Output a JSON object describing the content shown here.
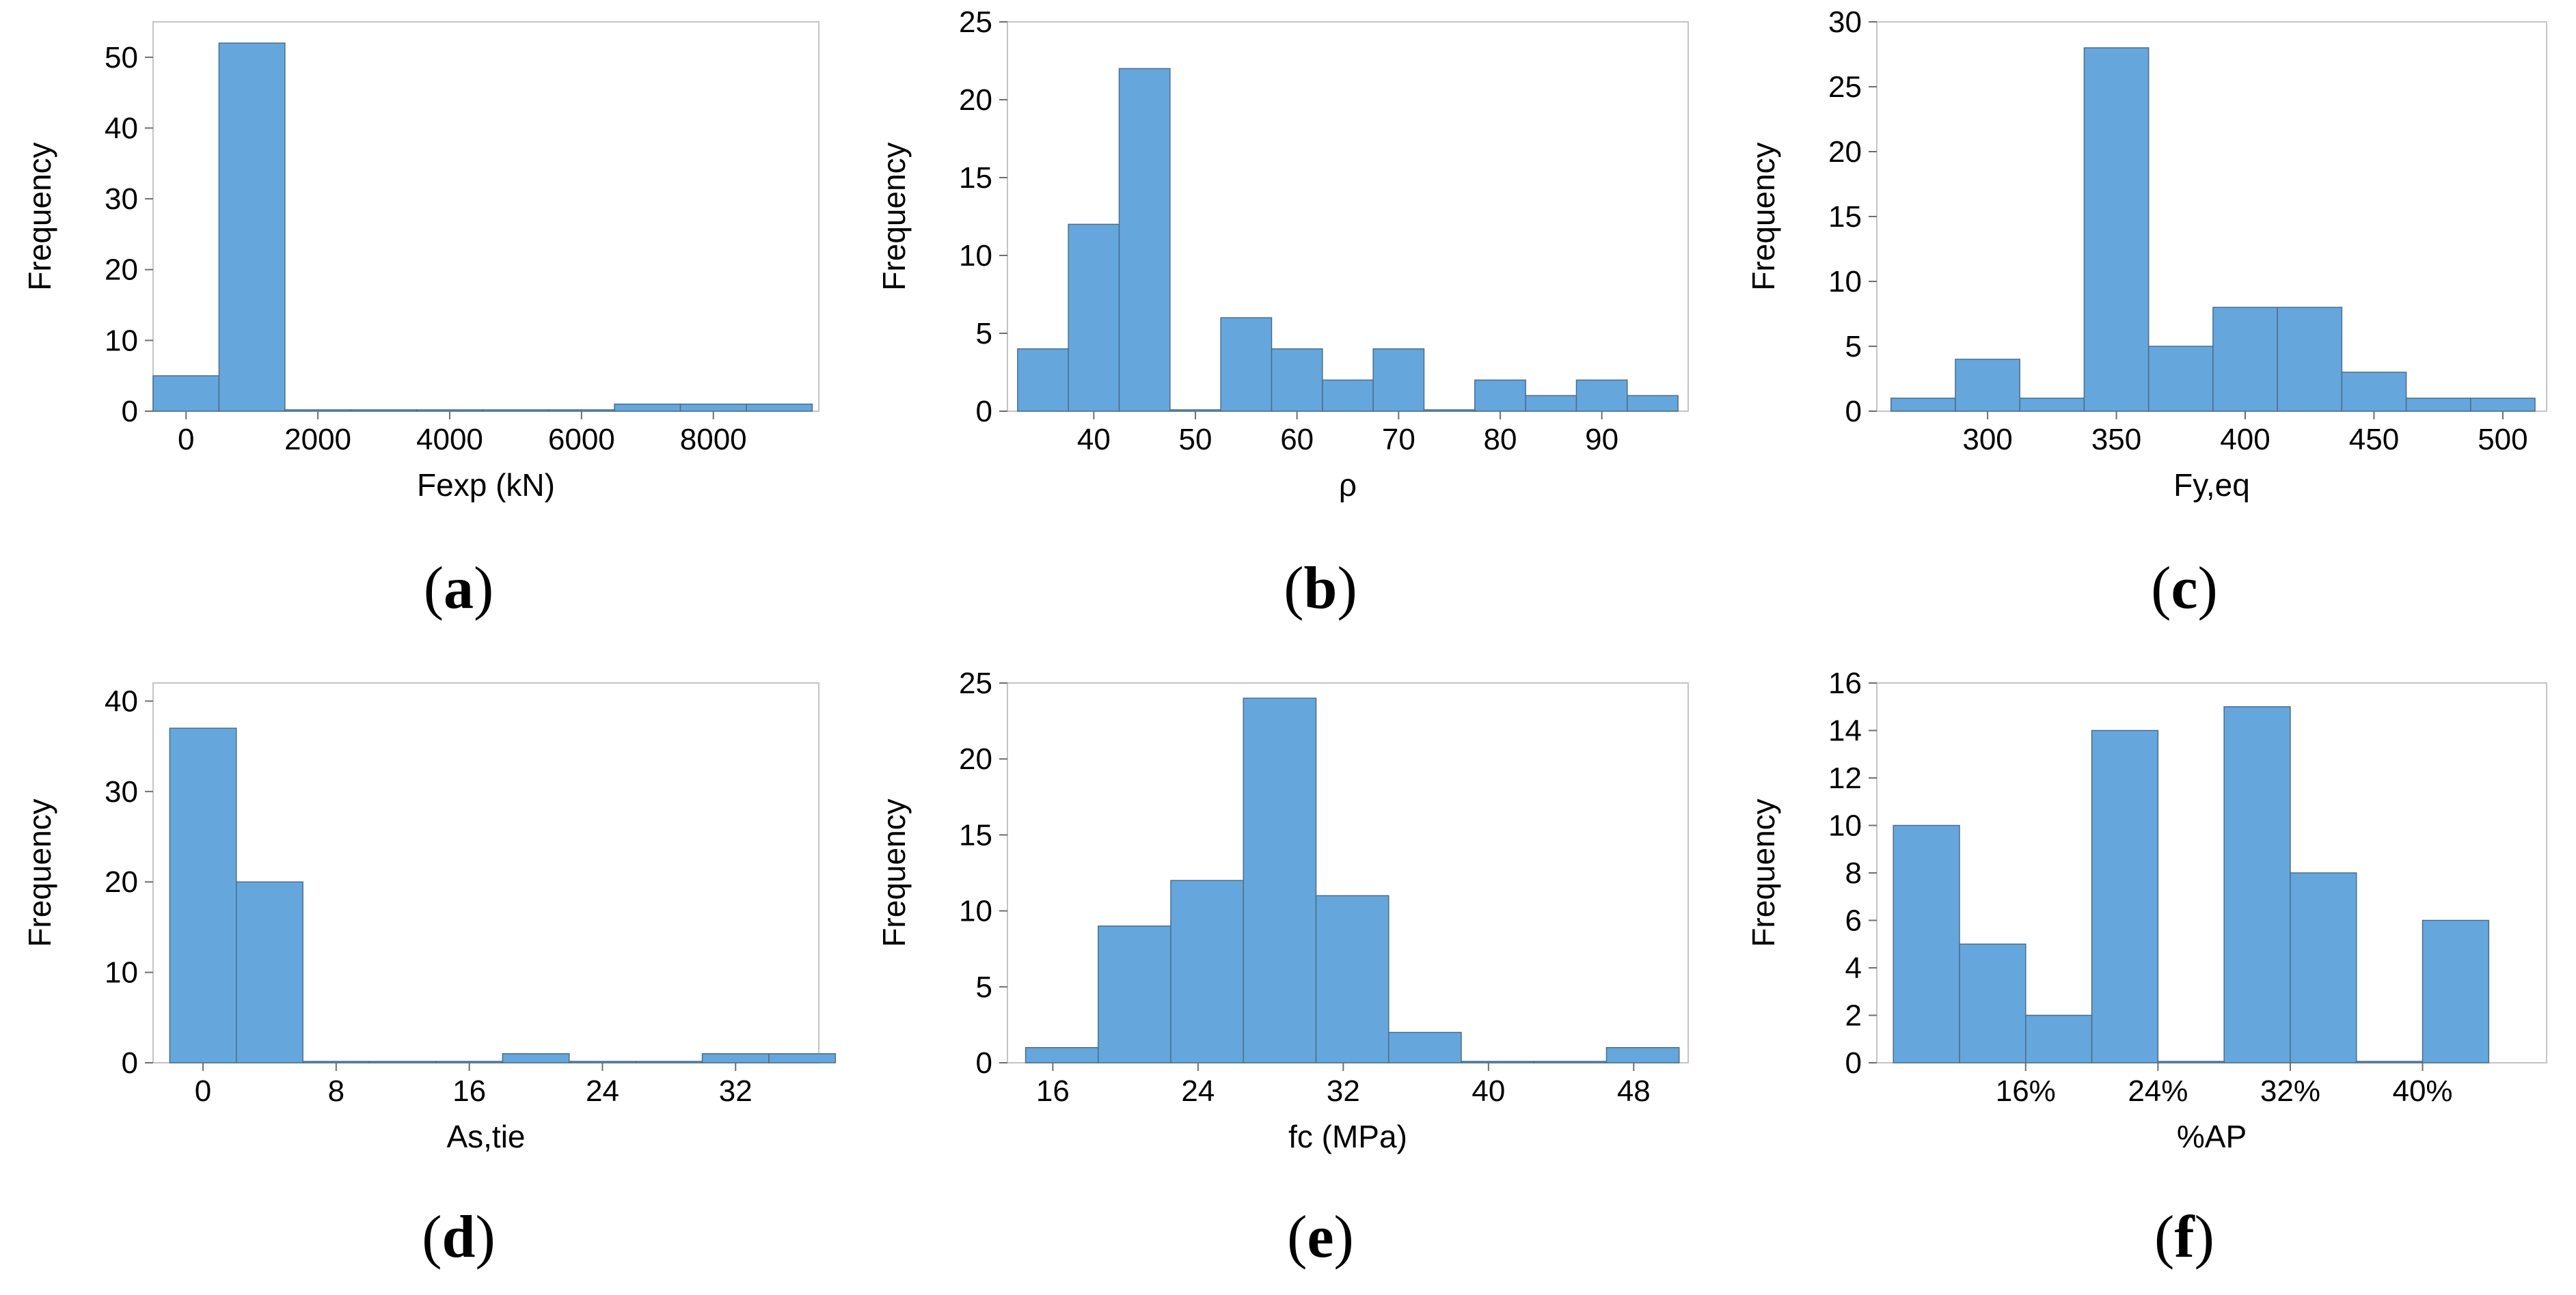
{
  "colors": {
    "bar_fill": "#65a7dc",
    "bar_stroke": "#4a6d8c",
    "frame": "#c4c4c4",
    "axis": "#6e6e6e",
    "text": "#000000",
    "background": "#ffffff"
  },
  "chart_data": [
    {
      "type": "bar",
      "panel": "(a)",
      "title": "",
      "xlabel": "Fexp (kN)",
      "ylabel": "Frequency",
      "xlim": [
        -500,
        9600
      ],
      "ylim": [
        0,
        55
      ],
      "yticks": [
        0,
        10,
        20,
        30,
        40,
        50
      ],
      "xticks": [
        0,
        2000,
        4000,
        6000,
        8000
      ],
      "xtick_labels": [
        "0",
        "2000",
        "4000",
        "6000",
        "8000"
      ],
      "bin_edges": [
        -500,
        500,
        1500,
        2500,
        3500,
        4500,
        5500,
        6500,
        7500,
        8500,
        9500
      ],
      "values": [
        5,
        52,
        0,
        0,
        0,
        0,
        0,
        1,
        1,
        1
      ]
    },
    {
      "type": "bar",
      "panel": "(b)",
      "title": "",
      "xlabel": "ρ",
      "ylabel": "Frequency",
      "xlim": [
        31.5,
        98.5
      ],
      "ylim": [
        0,
        25
      ],
      "yticks": [
        0,
        5,
        10,
        15,
        20,
        25
      ],
      "xticks": [
        40,
        50,
        60,
        70,
        80,
        90
      ],
      "xtick_labels": [
        "40",
        "50",
        "60",
        "70",
        "80",
        "90"
      ],
      "bin_edges": [
        32.5,
        37.5,
        42.5,
        47.5,
        52.5,
        57.5,
        62.5,
        67.5,
        72.5,
        77.5,
        82.5,
        87.5,
        92.5,
        97.5
      ],
      "values": [
        4,
        12,
        22,
        0,
        6,
        4,
        2,
        4,
        0,
        2,
        1,
        2,
        1
      ]
    },
    {
      "type": "bar",
      "panel": "(c)",
      "title": "",
      "xlabel": "Fy,eq",
      "ylabel": "Frequency",
      "xlim": [
        257,
        517
      ],
      "ylim": [
        0,
        30
      ],
      "yticks": [
        0,
        5,
        10,
        15,
        20,
        25,
        30
      ],
      "xticks": [
        300,
        350,
        400,
        450,
        500
      ],
      "xtick_labels": [
        "300",
        "350",
        "400",
        "450",
        "500"
      ],
      "bin_edges": [
        262.5,
        287.5,
        312.5,
        337.5,
        362.5,
        387.5,
        412.5,
        437.5,
        462.5,
        487.5,
        512.5
      ],
      "values": [
        1,
        4,
        1,
        28,
        5,
        8,
        8,
        3,
        1,
        1
      ]
    },
    {
      "type": "bar",
      "panel": "(d)",
      "title": "",
      "xlabel": "As,tie",
      "ylabel": "Frequency",
      "xlim": [
        -3,
        37
      ],
      "ylim": [
        0,
        42
      ],
      "yticks": [
        0,
        10,
        20,
        30,
        40
      ],
      "xticks": [
        0,
        8,
        16,
        24,
        32
      ],
      "xtick_labels": [
        "0",
        "8",
        "16",
        "24",
        "32"
      ],
      "bin_edges": [
        -2,
        2,
        6,
        10,
        14,
        18,
        22,
        26,
        30,
        34,
        38
      ],
      "values": [
        37,
        20,
        0,
        0,
        0,
        1,
        0,
        0,
        1,
        1
      ]
    },
    {
      "type": "bar",
      "panel": "(e)",
      "title": "",
      "xlabel": "fc (MPa)",
      "ylabel": "Frequency",
      "xlim": [
        13.5,
        51
      ],
      "ylim": [
        0,
        25
      ],
      "yticks": [
        0,
        5,
        10,
        15,
        20,
        25
      ],
      "xticks": [
        16,
        24,
        32,
        40,
        48
      ],
      "xtick_labels": [
        "16",
        "24",
        "32",
        "40",
        "48"
      ],
      "bin_edges": [
        14.5,
        18.5,
        22.5,
        26.5,
        30.5,
        34.5,
        38.5,
        42.5,
        46.5,
        50.5
      ],
      "values": [
        1,
        9,
        12,
        24,
        11,
        2,
        0,
        0,
        1
      ]
    },
    {
      "type": "bar",
      "panel": "(f)",
      "title": "",
      "xlabel": "%AP",
      "ylabel": "Frequency",
      "xlim": [
        7,
        47.5
      ],
      "ylim": [
        0,
        16
      ],
      "yticks": [
        0,
        2,
        4,
        6,
        8,
        10,
        12,
        14,
        16
      ],
      "xticks": [
        16,
        24,
        32,
        40
      ],
      "xtick_labels": [
        "16%",
        "24%",
        "32%",
        "40%"
      ],
      "bin_edges": [
        8,
        12,
        16,
        20,
        24,
        28,
        32,
        36,
        40,
        44
      ],
      "values": [
        10,
        5,
        2,
        14,
        0,
        15,
        8,
        0,
        6
      ]
    }
  ]
}
